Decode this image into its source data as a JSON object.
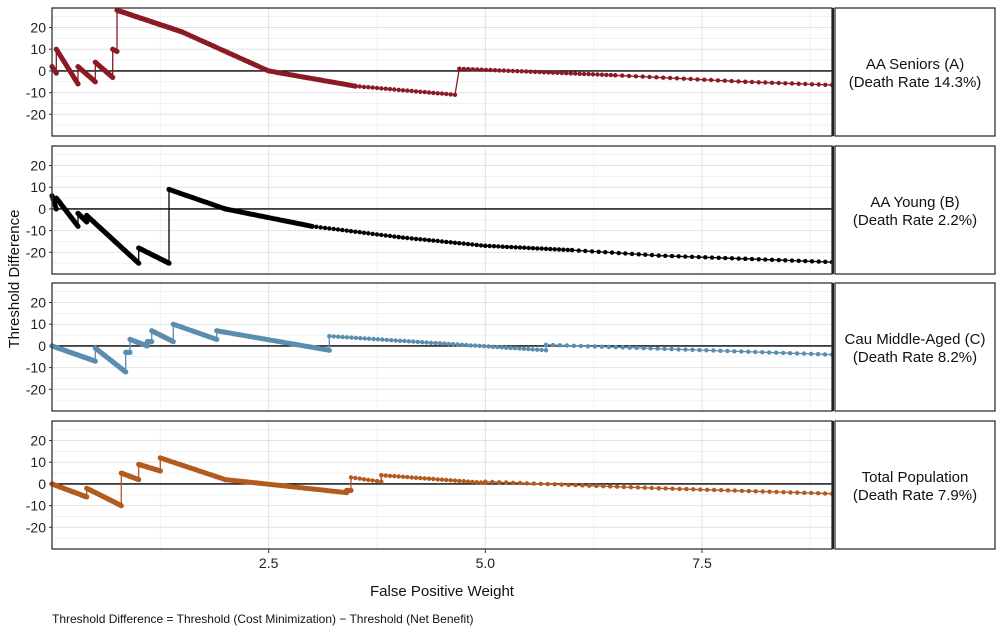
{
  "chart_data": {
    "type": "line",
    "xlabel": "False Positive Weight",
    "ylabel": "Threshold Difference",
    "caption": "Threshold Difference = Threshold (Cost Minimization) − Threshold (Net Benefit)",
    "xlim": [
      0,
      9
    ],
    "ylim": [
      -30,
      29
    ],
    "x_ticks": [
      2.5,
      5.0,
      7.5
    ],
    "x_tick_labels": [
      "2.5",
      "5.0",
      "7.5"
    ],
    "y_ticks": [
      -20,
      -10,
      0,
      10,
      20
    ],
    "y_tick_labels": [
      "-20",
      "-10",
      "0",
      "10",
      "20"
    ],
    "grid": true,
    "facets": [
      {
        "label_lines": [
          "AA Seniors (A)",
          "(Death Rate 14.3%)"
        ],
        "color": "#8b1a24",
        "segments": [
          [
            [
              0.0,
              2
            ],
            [
              0.05,
              -1
            ]
          ],
          [
            [
              0.05,
              10
            ],
            [
              0.3,
              -6
            ]
          ],
          [
            [
              0.3,
              2
            ],
            [
              0.5,
              -5
            ]
          ],
          [
            [
              0.5,
              4
            ],
            [
              0.7,
              -3
            ]
          ],
          [
            [
              0.7,
              10
            ],
            [
              0.75,
              9
            ]
          ],
          [
            [
              0.75,
              28
            ],
            [
              1.5,
              18
            ],
            [
              2.5,
              0
            ],
            [
              3.5,
              -7
            ],
            [
              4.65,
              -11
            ]
          ],
          [
            [
              4.7,
              1
            ],
            [
              6.5,
              -2
            ],
            [
              8.0,
              -5
            ],
            [
              9.0,
              -6.5
            ]
          ]
        ]
      },
      {
        "label_lines": [
          "AA Young (B)",
          "(Death Rate 2.2%)"
        ],
        "color": "#000000",
        "segments": [
          [
            [
              0.0,
              6
            ],
            [
              0.05,
              0
            ]
          ],
          [
            [
              0.05,
              5
            ],
            [
              0.3,
              -8
            ]
          ],
          [
            [
              0.3,
              -2
            ],
            [
              0.4,
              -6
            ]
          ],
          [
            [
              0.4,
              -3
            ],
            [
              1.0,
              -25
            ]
          ],
          [
            [
              1.0,
              -18
            ],
            [
              1.35,
              -25
            ]
          ],
          [
            [
              1.35,
              9
            ],
            [
              2.0,
              0
            ],
            [
              3.0,
              -8
            ],
            [
              4.0,
              -13
            ],
            [
              5.0,
              -17
            ],
            [
              6.0,
              -19
            ],
            [
              7.0,
              -21.5
            ],
            [
              8.0,
              -23
            ],
            [
              9.0,
              -24.5
            ]
          ]
        ]
      },
      {
        "label_lines": [
          "Cau Middle-Aged (C)",
          "(Death Rate 8.2%)"
        ],
        "color": "#5b8db0",
        "segments": [
          [
            [
              0.0,
              0
            ],
            [
              0.5,
              -7
            ]
          ],
          [
            [
              0.5,
              -1
            ],
            [
              0.85,
              -12
            ]
          ],
          [
            [
              0.85,
              -3
            ],
            [
              0.9,
              -3
            ]
          ],
          [
            [
              0.9,
              3
            ],
            [
              1.1,
              0
            ]
          ],
          [
            [
              1.1,
              2
            ],
            [
              1.15,
              2
            ]
          ],
          [
            [
              1.15,
              7
            ],
            [
              1.4,
              2
            ]
          ],
          [
            [
              1.4,
              10
            ],
            [
              1.9,
              3
            ]
          ],
          [
            [
              1.9,
              7
            ],
            [
              3.2,
              -2
            ]
          ],
          [
            [
              3.2,
              4.5
            ],
            [
              5.7,
              -2
            ]
          ],
          [
            [
              5.7,
              0.5
            ],
            [
              9.0,
              -4
            ]
          ]
        ]
      },
      {
        "label_lines": [
          "Total Population",
          "(Death Rate 7.9%)"
        ],
        "color": "#b35a1f",
        "segments": [
          [
            [
              0.0,
              0
            ],
            [
              0.4,
              -6
            ]
          ],
          [
            [
              0.4,
              -2
            ],
            [
              0.8,
              -10
            ]
          ],
          [
            [
              0.8,
              5
            ],
            [
              1.0,
              2
            ]
          ],
          [
            [
              1.0,
              9
            ],
            [
              1.25,
              6
            ]
          ],
          [
            [
              1.25,
              12
            ],
            [
              2.0,
              2
            ],
            [
              3.4,
              -4
            ]
          ],
          [
            [
              3.4,
              -3
            ],
            [
              3.45,
              -3
            ]
          ],
          [
            [
              3.45,
              3
            ],
            [
              3.8,
              1
            ]
          ],
          [
            [
              3.8,
              4
            ],
            [
              5.0,
              0.5
            ]
          ],
          [
            [
              5.0,
              1
            ],
            [
              7.0,
              -2
            ],
            [
              9.0,
              -4.5
            ]
          ]
        ]
      }
    ]
  }
}
